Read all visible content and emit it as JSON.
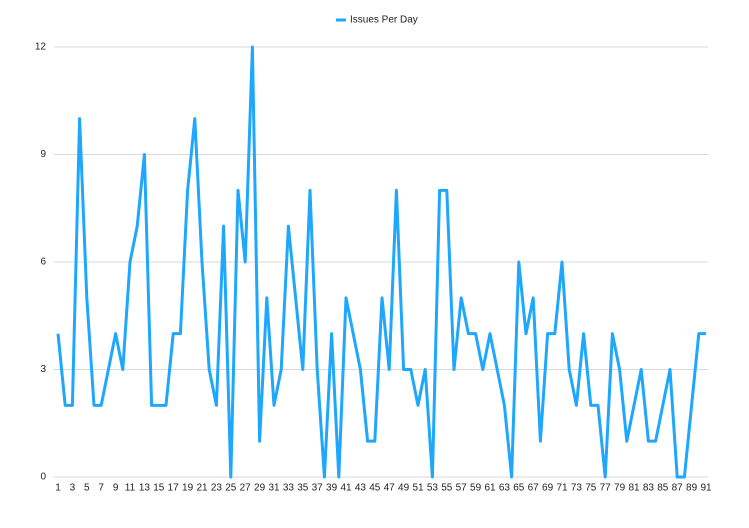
{
  "chart_data": {
    "type": "line",
    "categories": [
      "1",
      null,
      "3",
      null,
      "5",
      null,
      "7",
      null,
      "9",
      null,
      "11",
      null,
      "13",
      null,
      "15",
      null,
      "17",
      null,
      "19",
      null,
      "21",
      null,
      "23",
      null,
      "25",
      null,
      "27",
      null,
      "29",
      null,
      "31",
      null,
      "33",
      null,
      "35",
      null,
      "37",
      null,
      "39",
      null,
      "41",
      null,
      "43",
      null,
      "45",
      null,
      "47",
      null,
      "49",
      null,
      "51",
      null,
      "53",
      null,
      "55",
      null,
      "57",
      null,
      "59",
      null,
      "61",
      null,
      "63",
      null,
      "65",
      null,
      "67",
      null,
      "69",
      null,
      "71",
      null,
      "73",
      null,
      "75",
      null,
      "77",
      null,
      "79",
      null,
      "81",
      null,
      "83",
      null,
      "85",
      null,
      "87",
      null,
      "89",
      null,
      "91"
    ],
    "series": [
      {
        "name": "Issues Per Day",
        "color": "#1ea7fd",
        "values": [
          4,
          2,
          2,
          10,
          5,
          2,
          2,
          3,
          4,
          3,
          6,
          7,
          9,
          2,
          2,
          2,
          4,
          4,
          8,
          10,
          6,
          3,
          2,
          7,
          0,
          8,
          6,
          12,
          1,
          5,
          2,
          3,
          7,
          5,
          3,
          8,
          3,
          0,
          4,
          0,
          5,
          4,
          3,
          1,
          1,
          5,
          3,
          8,
          3,
          3,
          2,
          3,
          0,
          8,
          8,
          3,
          5,
          4,
          4,
          3,
          4,
          3,
          2,
          0,
          6,
          4,
          5,
          1,
          4,
          4,
          6,
          3,
          2,
          4,
          2,
          2,
          0,
          4,
          3,
          1,
          2,
          3,
          1,
          1,
          2,
          3,
          0,
          0,
          2,
          4,
          4
        ]
      }
    ],
    "ylim": [
      0,
      12
    ],
    "yticks": [
      0,
      3,
      6,
      9,
      12
    ],
    "grid": true,
    "legend": "top"
  }
}
